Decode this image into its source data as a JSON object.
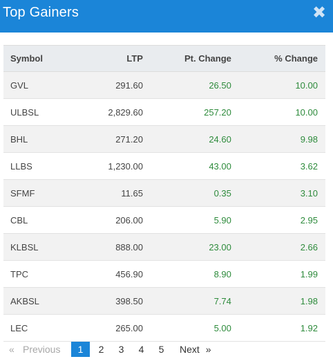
{
  "header": {
    "title": "Top Gainers",
    "close_icon": "close-icon",
    "close_glyph": "✖"
  },
  "columns": [
    "Symbol",
    "LTP",
    "Pt. Change",
    "% Change"
  ],
  "rows": [
    [
      "GVL",
      "291.60",
      "26.50",
      "10.00"
    ],
    [
      "ULBSL",
      "2,829.60",
      "257.20",
      "10.00"
    ],
    [
      "BHL",
      "271.20",
      "24.60",
      "9.98"
    ],
    [
      "LLBS",
      "1,230.00",
      "43.00",
      "3.62"
    ],
    [
      "SFMF",
      "11.65",
      "0.35",
      "3.10"
    ],
    [
      "CBL",
      "206.00",
      "5.90",
      "2.95"
    ],
    [
      "KLBSL",
      "888.00",
      "23.00",
      "2.66"
    ],
    [
      "TPC",
      "456.90",
      "8.90",
      "1.99"
    ],
    [
      "AKBSL",
      "398.50",
      "7.74",
      "1.98"
    ],
    [
      "LEC",
      "265.00",
      "5.00",
      "1.92"
    ]
  ],
  "colors": {
    "header_bg": "#1b85d8",
    "gain": "#2e8b3c"
  },
  "pagination": {
    "prev_arrow": "«",
    "prev_label": "Previous",
    "pages": [
      "1",
      "2",
      "3",
      "4",
      "5"
    ],
    "active_page": "1",
    "next_label": "Next",
    "next_arrow": "»"
  }
}
